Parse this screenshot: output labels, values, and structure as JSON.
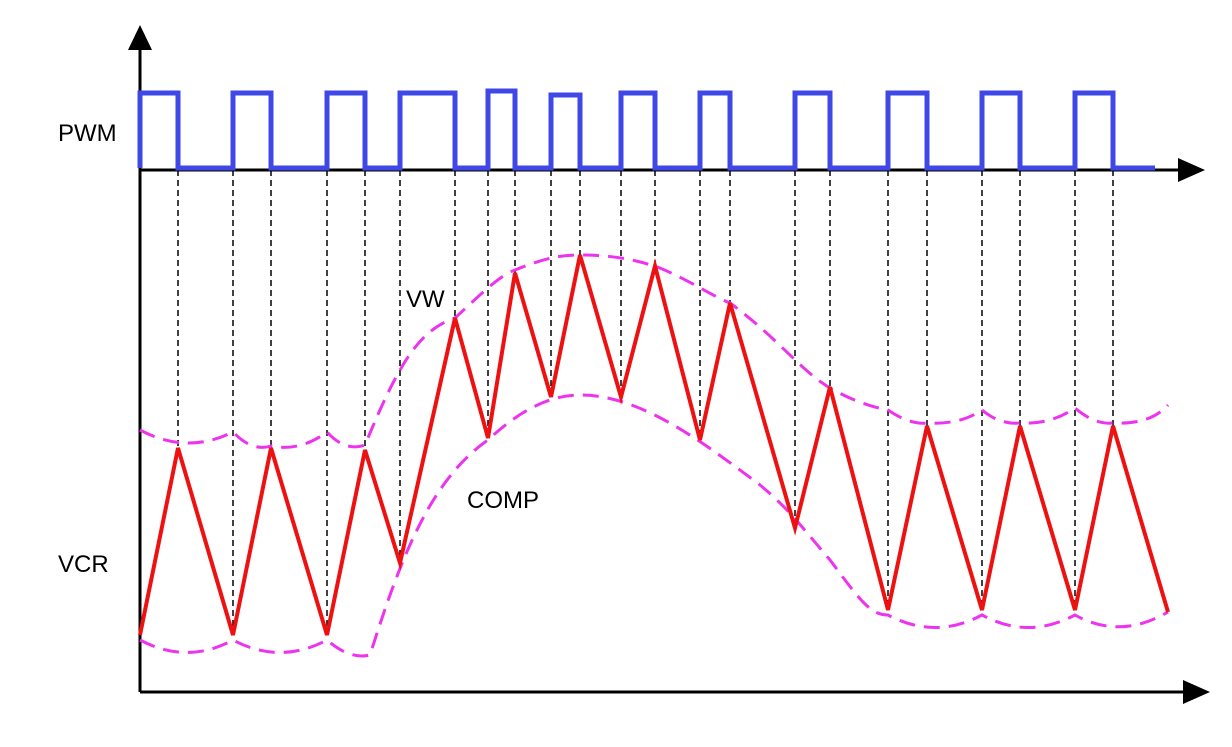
{
  "labels": {
    "pwm": "PWM",
    "vw": "VW",
    "comp": "COMP",
    "vcr": "VCR"
  }
}
